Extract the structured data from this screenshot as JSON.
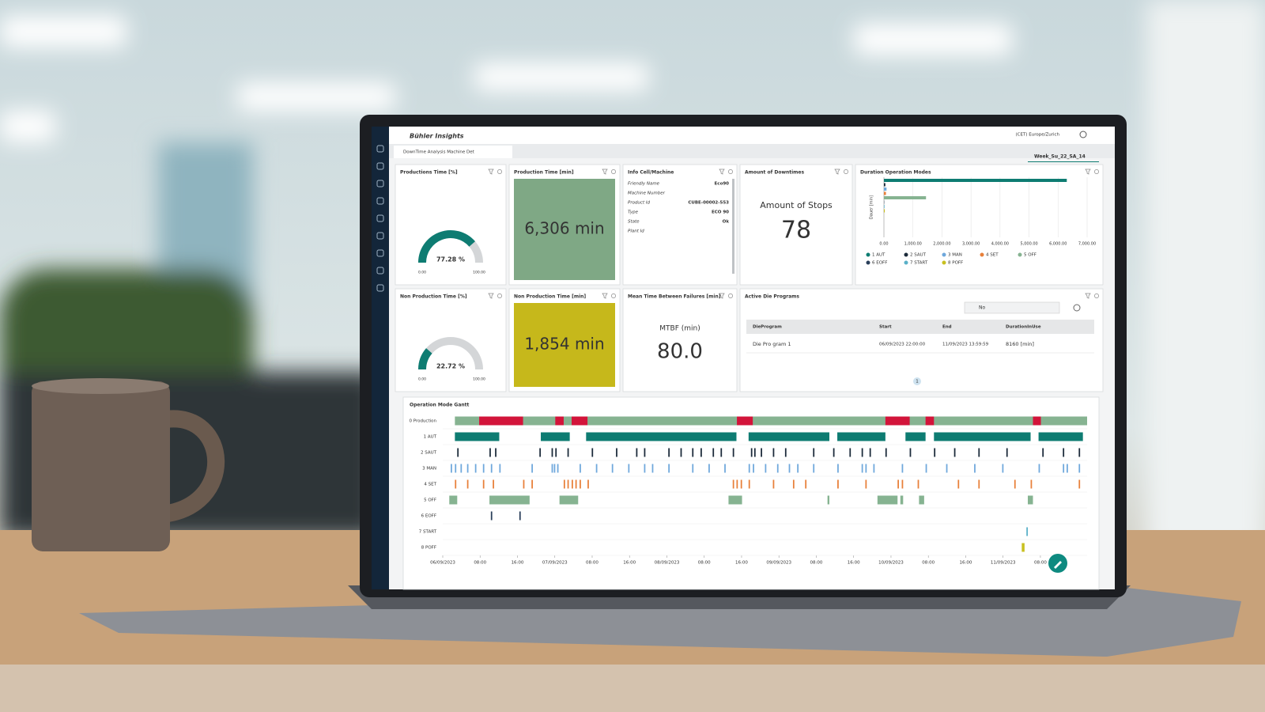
{
  "header": {
    "brand": "Bühler Insights",
    "timezone": "(CET) Europe/Zurich",
    "tab": "DownTime Analysis Machine Det",
    "week": "Week_Su_22_SA_14"
  },
  "widgets": {
    "production_pct": {
      "title": "Productions Time [%]",
      "value": 77.28,
      "value_label": "77.28 %",
      "range": [
        {
          "value": 0,
          "label": "0.00"
        },
        {
          "value": 100,
          "label": "100.00"
        }
      ],
      "color": "#0e7c72"
    },
    "production_min": {
      "title": "Production Time [min]",
      "value": 6306,
      "value_label": "6,306 min",
      "color": "#7fa885"
    },
    "info": {
      "title": "Info Cell/Machine",
      "rows": [
        {
          "label": "Friendly Name",
          "value": "Eco90"
        },
        {
          "label": "Machine Number"
        },
        {
          "label": "Product Id",
          "value": "CUBE-00002-553"
        },
        {
          "label": "Type",
          "value": "ECO 90"
        },
        {
          "label": "State",
          "value": "Ok"
        },
        {
          "label": "Plant Id"
        }
      ]
    },
    "stops": {
      "title": "Amount of Downtimes",
      "label": "Amount of Stops",
      "value": 78
    },
    "nonprod_pct": {
      "title": "Non Production Time [%]",
      "value": 22.72,
      "value_label": "22.72 %",
      "range": [
        {
          "value": 0,
          "label": "0.00"
        },
        {
          "value": 100,
          "label": "100.00"
        }
      ],
      "color": "#0e7c72"
    },
    "nonprod_min": {
      "title": "Non Production Time [min]",
      "value": 1854,
      "value_label": "1,854 min",
      "color": "#c6b81b"
    },
    "mtbf": {
      "title": "Mean Time Between Failures [min]",
      "label": "MTBF (min)",
      "value": 80,
      "value_label": "80.0"
    },
    "die_programs": {
      "title": "Active Die Programs",
      "search": "No",
      "columns": [
        "DieProgram",
        "Start",
        "End",
        "DurationInUse"
      ],
      "rows": [
        [
          "Die Pro gram 1",
          "06/09/2023 22:00:00",
          "11/09/2023 13:59:59",
          "8160 [min]"
        ]
      ],
      "page": 1
    }
  },
  "chart_data": [
    {
      "type": "bar",
      "orientation": "horizontal",
      "title": "Duration Operation Modes",
      "y_label": "Dauer [min]",
      "categories": [
        "1 AUT",
        "2 SAUT",
        "3 MAN",
        "4 SET",
        "5 OFF",
        "6 EOFF",
        "7 START",
        "8 POFF"
      ],
      "values": [
        6300,
        50,
        90,
        70,
        1450,
        10,
        20,
        30
      ],
      "colors": [
        "#0e7c72",
        "#1b2a3a",
        "#6fa8dc",
        "#e8803a",
        "#86b391",
        "#2a3f5a",
        "#5ab0c8",
        "#c8c020"
      ],
      "xlim": [
        0,
        7000
      ],
      "xticks": [
        {
          "value": 0,
          "label": "0.00"
        },
        {
          "value": 1000,
          "label": "1,000.00"
        },
        {
          "value": 2000,
          "label": "2,000.00"
        },
        {
          "value": 3000,
          "label": "3,000.00"
        },
        {
          "value": 4000,
          "label": "4,000.00"
        },
        {
          "value": 5000,
          "label": "5,000.00"
        },
        {
          "value": 6000,
          "label": "6,000.00"
        },
        {
          "value": 7000,
          "label": "7,000.00"
        }
      ],
      "grid": true
    },
    {
      "type": "gantt",
      "title": "Operation Mode Gantt",
      "xlim": [
        0,
        138
      ],
      "xticks": [
        {
          "value": 0,
          "label": "06/09/2023"
        },
        {
          "value": 8,
          "label": "08:00"
        },
        {
          "value": 16,
          "label": "16:00"
        },
        {
          "value": 24,
          "label": "07/09/2023"
        },
        {
          "value": 32,
          "label": "08:00"
        },
        {
          "value": 40,
          "label": "16:00"
        },
        {
          "value": 48,
          "label": "08/09/2023"
        },
        {
          "value": 56,
          "label": "08:00"
        },
        {
          "value": 64,
          "label": "16:00"
        },
        {
          "value": 72,
          "label": "09/09/2023"
        },
        {
          "value": 80,
          "label": "08:00"
        },
        {
          "value": 88,
          "label": "16:00"
        },
        {
          "value": 96,
          "label": "10/09/2023"
        },
        {
          "value": 104,
          "label": "08:00"
        },
        {
          "value": 112,
          "label": "16:00"
        },
        {
          "value": 120,
          "label": "11/09/2023"
        },
        {
          "value": 128,
          "label": "08:00"
        }
      ],
      "rows": [
        {
          "name": "0 Production",
          "color": "#86b391",
          "segments": [
            [
              2.6,
              138
            ]
          ],
          "stops": {
            "color": "#d2143a",
            "segments": [
              [
                7.8,
                17.2
              ],
              [
                24.1,
                25.9
              ],
              [
                27.6,
                31
              ],
              [
                63,
                66.4
              ],
              [
                94.8,
                100
              ],
              [
                103.4,
                105.2
              ],
              [
                126.4,
                128.1
              ]
            ]
          }
        },
        {
          "name": "1 AUT",
          "color": "#0e7c72",
          "segments": [
            [
              2.6,
              12.1
            ],
            [
              21,
              27.2
            ],
            [
              30.7,
              62.9
            ],
            [
              65.5,
              82.8
            ],
            [
              84.5,
              94.8
            ],
            [
              99.1,
              103.4
            ],
            [
              105.2,
              125.9
            ],
            [
              127.6,
              137.1
            ]
          ]
        },
        {
          "name": "2 SAUT",
          "color": "#1b2a3a",
          "segments": [
            [
              3.1,
              3.4
            ],
            [
              10,
              10.3
            ],
            [
              11.2,
              11.5
            ],
            [
              20.7,
              21
            ],
            [
              23.3,
              23.6
            ],
            [
              24.1,
              24.4
            ],
            [
              26.7,
              27
            ],
            [
              31.9,
              32.2
            ],
            [
              37.1,
              37.4
            ],
            [
              41.4,
              41.7
            ],
            [
              43.1,
              43.4
            ],
            [
              48.3,
              48.6
            ],
            [
              50.9,
              51.2
            ],
            [
              53.4,
              53.7
            ],
            [
              55.2,
              55.5
            ],
            [
              57.8,
              58.1
            ],
            [
              59.5,
              59.8
            ],
            [
              62.1,
              62.4
            ],
            [
              66,
              66.3
            ],
            [
              66.7,
              67
            ],
            [
              68.1,
              68.4
            ],
            [
              70.7,
              71
            ],
            [
              73.3,
              73.6
            ],
            [
              79.3,
              79.6
            ],
            [
              83.6,
              83.9
            ],
            [
              87.1,
              87.4
            ],
            [
              89.7,
              90
            ],
            [
              91.4,
              91.7
            ],
            [
              94.8,
              95.1
            ],
            [
              100,
              100.3
            ],
            [
              105.2,
              105.5
            ],
            [
              109.5,
              109.8
            ],
            [
              114.7,
              115
            ],
            [
              120.7,
              121
            ],
            [
              128.4,
              128.7
            ],
            [
              132.8,
              133.1
            ],
            [
              136.2,
              136.5
            ]
          ]
        },
        {
          "name": "3 MAN",
          "color": "#6fa8dc",
          "segments": [
            [
              1.7,
              2
            ],
            [
              2.6,
              2.9
            ],
            [
              3.8,
              4.1
            ],
            [
              5.2,
              5.5
            ],
            [
              6.9,
              7.2
            ],
            [
              8.6,
              8.9
            ],
            [
              10.3,
              10.6
            ],
            [
              12.1,
              12.4
            ],
            [
              19,
              19.3
            ],
            [
              23.3,
              23.6
            ],
            [
              23.8,
              24.1
            ],
            [
              24.5,
              24.8
            ],
            [
              29.3,
              29.6
            ],
            [
              32.8,
              33.1
            ],
            [
              36.2,
              36.5
            ],
            [
              39.7,
              40
            ],
            [
              43.1,
              43.4
            ],
            [
              44.8,
              45.1
            ],
            [
              48.3,
              48.6
            ],
            [
              53.4,
              53.7
            ],
            [
              56.9,
              57.2
            ],
            [
              60.3,
              60.6
            ],
            [
              65.5,
              65.8
            ],
            [
              66.4,
              66.7
            ],
            [
              69,
              69.3
            ],
            [
              71.6,
              71.9
            ],
            [
              74.1,
              74.4
            ],
            [
              75.9,
              76.2
            ],
            [
              79.3,
              79.6
            ],
            [
              84.5,
              84.8
            ],
            [
              89.7,
              90
            ],
            [
              90.5,
              90.8
            ],
            [
              92.2,
              92.5
            ],
            [
              98.3,
              98.6
            ],
            [
              103.4,
              103.7
            ],
            [
              107.8,
              108.1
            ],
            [
              113.8,
              114.1
            ],
            [
              119.8,
              120.1
            ],
            [
              127.6,
              127.9
            ],
            [
              132.8,
              133.1
            ],
            [
              133.6,
              133.9
            ],
            [
              136.2,
              136.5
            ]
          ]
        },
        {
          "name": "4 SET",
          "color": "#e8803a",
          "segments": [
            [
              2.6,
              2.9
            ],
            [
              5.2,
              5.5
            ],
            [
              8.6,
              8.9
            ],
            [
              10.7,
              11
            ],
            [
              17.2,
              17.5
            ],
            [
              19,
              19.3
            ],
            [
              25.9,
              26.2
            ],
            [
              26.7,
              27
            ],
            [
              27.6,
              27.9
            ],
            [
              28.4,
              28.7
            ],
            [
              29.3,
              29.6
            ],
            [
              31,
              31.3
            ],
            [
              62.1,
              62.4
            ],
            [
              62.9,
              63.2
            ],
            [
              63.8,
              64.1
            ],
            [
              65.5,
              65.8
            ],
            [
              70.7,
              71
            ],
            [
              75,
              75.3
            ],
            [
              77.6,
              77.9
            ],
            [
              84.5,
              84.8
            ],
            [
              90.5,
              90.8
            ],
            [
              97.4,
              97.7
            ],
            [
              98.3,
              98.6
            ],
            [
              101.7,
              102
            ],
            [
              110.3,
              110.6
            ],
            [
              114.7,
              115
            ],
            [
              122.4,
              122.7
            ],
            [
              125.9,
              126.2
            ],
            [
              136.2,
              136.5
            ]
          ]
        },
        {
          "name": "5 OFF",
          "color": "#86b391",
          "segments": [
            [
              1.4,
              3.1
            ],
            [
              10,
              18.6
            ],
            [
              25,
              29
            ],
            [
              61.2,
              64.1
            ],
            [
              82.4,
              82.8
            ],
            [
              93.1,
              97.4
            ],
            [
              98,
              98.6
            ],
            [
              102,
              103.1
            ],
            [
              125.3,
              126.4
            ]
          ]
        },
        {
          "name": "6 EOFF",
          "color": "#2a3f5a",
          "segments": [
            [
              10.3,
              10.6
            ],
            [
              16.4,
              16.7
            ]
          ]
        },
        {
          "name": "7 START",
          "color": "#5ab0c8",
          "segments": [
            [
              125,
              125.3
            ]
          ]
        },
        {
          "name": "8 POFF",
          "color": "#c8c020",
          "segments": [
            [
              124,
              124.6
            ]
          ]
        }
      ]
    }
  ]
}
